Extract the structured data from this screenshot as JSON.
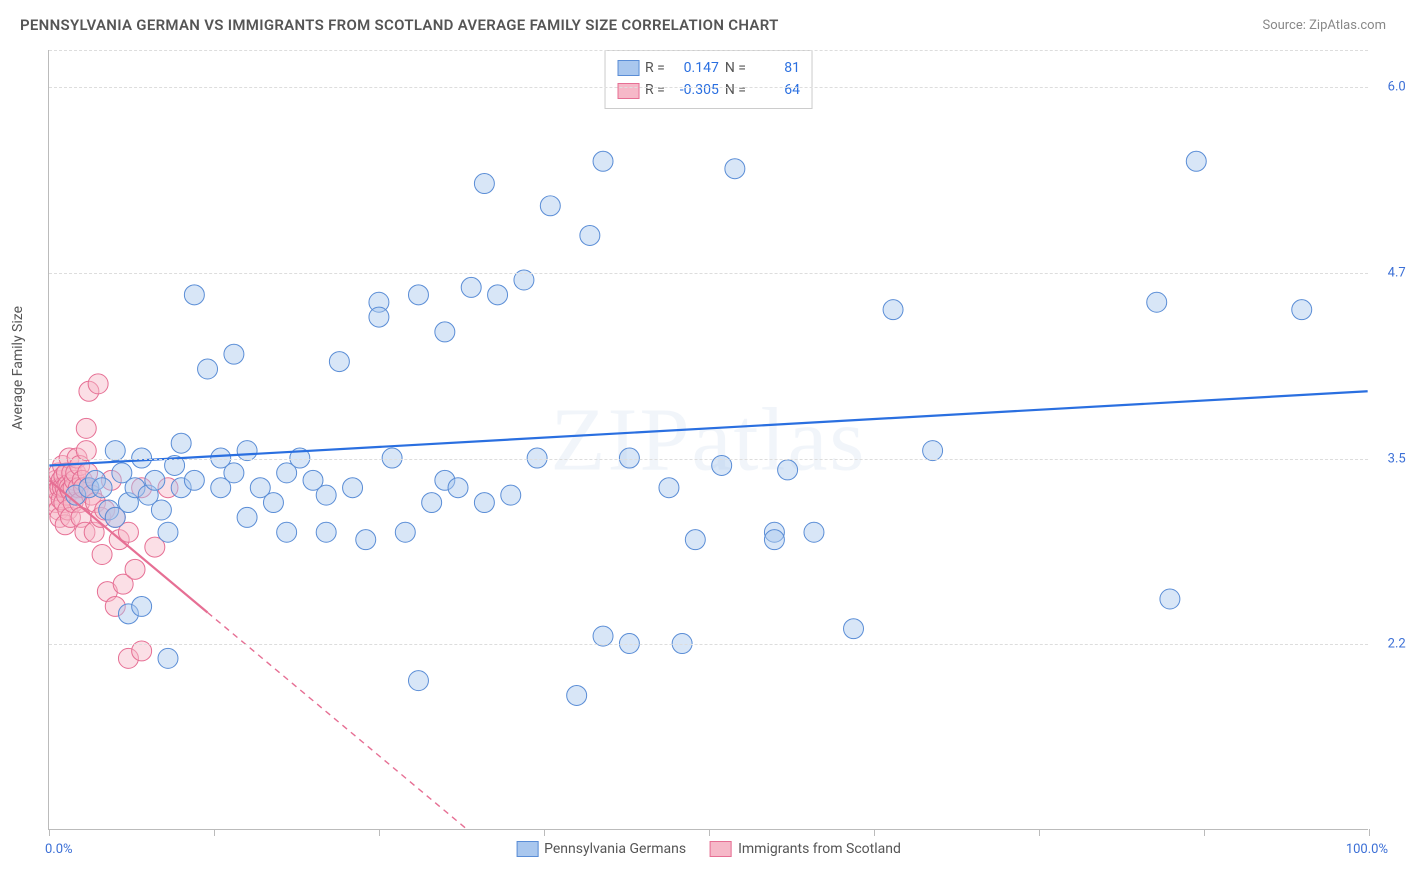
{
  "header": {
    "title": "PENNSYLVANIA GERMAN VS IMMIGRANTS FROM SCOTLAND AVERAGE FAMILY SIZE CORRELATION CHART",
    "source": "Source: ZipAtlas.com"
  },
  "watermark": "ZIPatlas",
  "chart": {
    "type": "scatter",
    "background_color": "#ffffff",
    "grid_color": "#dddddd",
    "axis_color": "#bbbbbb",
    "ylabel": "Average Family Size",
    "ylabel_fontsize": 14,
    "xlim": [
      0,
      100
    ],
    "ylim": [
      1.0,
      6.25
    ],
    "yticks": [
      2.25,
      3.5,
      4.75,
      6.0
    ],
    "ytick_labels": [
      "2.25",
      "3.50",
      "4.75",
      "6.00"
    ],
    "xticks": [
      0,
      12.5,
      25,
      37.5,
      50,
      62.5,
      75,
      87.5,
      100
    ],
    "x_min_label": "0.0%",
    "x_max_label": "100.0%",
    "marker_radius": 10,
    "marker_opacity": 0.45,
    "trend_line_width": 2.2,
    "series": [
      {
        "name": "Pennsylvania Germans",
        "legend_label": "Pennsylvania Germans",
        "color_fill": "#a9c7ee",
        "color_stroke": "#5a8dd6",
        "stats": {
          "r_label": "R =",
          "r": "0.147",
          "n_label": "N =",
          "n": "81"
        },
        "trend": {
          "x1": 0,
          "y1": 3.45,
          "x2": 100,
          "y2": 3.95,
          "dash": "none",
          "color": "#2a6fe0"
        },
        "points": [
          [
            2,
            3.25
          ],
          [
            3,
            3.3
          ],
          [
            3.5,
            3.35
          ],
          [
            4,
            3.3
          ],
          [
            4.5,
            3.15
          ],
          [
            5,
            3.1
          ],
          [
            5,
            3.55
          ],
          [
            5.5,
            3.4
          ],
          [
            6,
            3.2
          ],
          [
            6,
            2.45
          ],
          [
            6.5,
            3.3
          ],
          [
            7,
            3.5
          ],
          [
            7,
            2.5
          ],
          [
            7.5,
            3.25
          ],
          [
            8,
            3.35
          ],
          [
            8.5,
            3.15
          ],
          [
            9,
            3.0
          ],
          [
            9,
            2.15
          ],
          [
            9.5,
            3.45
          ],
          [
            10,
            3.3
          ],
          [
            10,
            3.6
          ],
          [
            11,
            3.35
          ],
          [
            11,
            4.6
          ],
          [
            12,
            4.1
          ],
          [
            13,
            3.3
          ],
          [
            13,
            3.5
          ],
          [
            14,
            3.4
          ],
          [
            14,
            4.2
          ],
          [
            15,
            3.1
          ],
          [
            15,
            3.55
          ],
          [
            16,
            3.3
          ],
          [
            17,
            3.2
          ],
          [
            18,
            3.4
          ],
          [
            18,
            3.0
          ],
          [
            19,
            3.5
          ],
          [
            20,
            3.35
          ],
          [
            21,
            3.0
          ],
          [
            21,
            3.25
          ],
          [
            22,
            4.15
          ],
          [
            23,
            3.3
          ],
          [
            24,
            2.95
          ],
          [
            25,
            4.55
          ],
          [
            25,
            4.45
          ],
          [
            26,
            3.5
          ],
          [
            27,
            3.0
          ],
          [
            28,
            4.6
          ],
          [
            28,
            2.0
          ],
          [
            29,
            3.2
          ],
          [
            30,
            3.35
          ],
          [
            30,
            4.35
          ],
          [
            31,
            3.3
          ],
          [
            32,
            4.65
          ],
          [
            33,
            3.2
          ],
          [
            33,
            5.35
          ],
          [
            34,
            4.6
          ],
          [
            35,
            3.25
          ],
          [
            36,
            4.7
          ],
          [
            37,
            3.5
          ],
          [
            38,
            5.2
          ],
          [
            40,
            1.9
          ],
          [
            41,
            5.0
          ],
          [
            42,
            2.3
          ],
          [
            42,
            5.5
          ],
          [
            44,
            3.5
          ],
          [
            44,
            2.25
          ],
          [
            47,
            3.3
          ],
          [
            48,
            2.25
          ],
          [
            49,
            2.95
          ],
          [
            51,
            3.45
          ],
          [
            52,
            5.45
          ],
          [
            55,
            3,
            0
          ],
          [
            55,
            2.95
          ],
          [
            56,
            3.42
          ],
          [
            58,
            3.0
          ],
          [
            61,
            2.35
          ],
          [
            64,
            4.5
          ],
          [
            67,
            3.55
          ],
          [
            84,
            4.55
          ],
          [
            85,
            2.55
          ],
          [
            87,
            5.5
          ],
          [
            95,
            4.5
          ]
        ]
      },
      {
        "name": "Immigrants from Scotland",
        "legend_label": "Immigrants from Scotland",
        "color_fill": "#f6b8c8",
        "color_stroke": "#e66f94",
        "stats": {
          "r_label": "R =",
          "r": "-0.305",
          "n_label": "N =",
          "n": "64"
        },
        "trend": {
          "x1": 0,
          "y1": 3.35,
          "x2": 33,
          "y2": 0.9,
          "dash": "6 5",
          "color": "#e66f94",
          "solid_until_x": 12
        },
        "points": [
          [
            0.3,
            3.25
          ],
          [
            0.4,
            3.3
          ],
          [
            0.5,
            3.2
          ],
          [
            0.5,
            3.35
          ],
          [
            0.6,
            3.28
          ],
          [
            0.7,
            3.15
          ],
          [
            0.7,
            3.4
          ],
          [
            0.8,
            3.3
          ],
          [
            0.8,
            3.1
          ],
          [
            0.9,
            3.35
          ],
          [
            0.9,
            3.22
          ],
          [
            1.0,
            3.3
          ],
          [
            1.0,
            3.45
          ],
          [
            1.1,
            3.2
          ],
          [
            1.1,
            3.38
          ],
          [
            1.2,
            3.3
          ],
          [
            1.2,
            3.05
          ],
          [
            1.3,
            3.4
          ],
          [
            1.3,
            3.25
          ],
          [
            1.4,
            3.32
          ],
          [
            1.4,
            3.15
          ],
          [
            1.5,
            3.3
          ],
          [
            1.5,
            3.5
          ],
          [
            1.6,
            3.28
          ],
          [
            1.6,
            3.1
          ],
          [
            1.7,
            3.4
          ],
          [
            1.8,
            3.3
          ],
          [
            1.8,
            3.2
          ],
          [
            1.9,
            3.35
          ],
          [
            2.0,
            3.4
          ],
          [
            2.0,
            3.25
          ],
          [
            2.1,
            3.5
          ],
          [
            2.2,
            3.3
          ],
          [
            2.3,
            3.2
          ],
          [
            2.3,
            3.45
          ],
          [
            2.4,
            3.1
          ],
          [
            2.5,
            3.35
          ],
          [
            2.6,
            3.3
          ],
          [
            2.7,
            3.0
          ],
          [
            2.8,
            3.55
          ],
          [
            2.8,
            3.7
          ],
          [
            2.9,
            3.4
          ],
          [
            3.0,
            3.95
          ],
          [
            3.0,
            3.3
          ],
          [
            3.2,
            3.25
          ],
          [
            3.4,
            3.0
          ],
          [
            3.5,
            3.2
          ],
          [
            3.7,
            4.0
          ],
          [
            3.9,
            3.1
          ],
          [
            4.0,
            2.85
          ],
          [
            4.2,
            3.15
          ],
          [
            4.4,
            2.6
          ],
          [
            4.7,
            3.35
          ],
          [
            5.0,
            3.1
          ],
          [
            5.0,
            2.5
          ],
          [
            5.3,
            2.95
          ],
          [
            5.6,
            2.65
          ],
          [
            6.0,
            3.0
          ],
          [
            6.0,
            2.15
          ],
          [
            6.5,
            2.75
          ],
          [
            7.0,
            2.2
          ],
          [
            7.0,
            3.3
          ],
          [
            8.0,
            2.9
          ],
          [
            9.0,
            3.3
          ]
        ]
      }
    ],
    "legend_box": {
      "border_color": "#cccccc",
      "bg": "#ffffff",
      "stat_value_color": "#2a6fe0"
    }
  }
}
